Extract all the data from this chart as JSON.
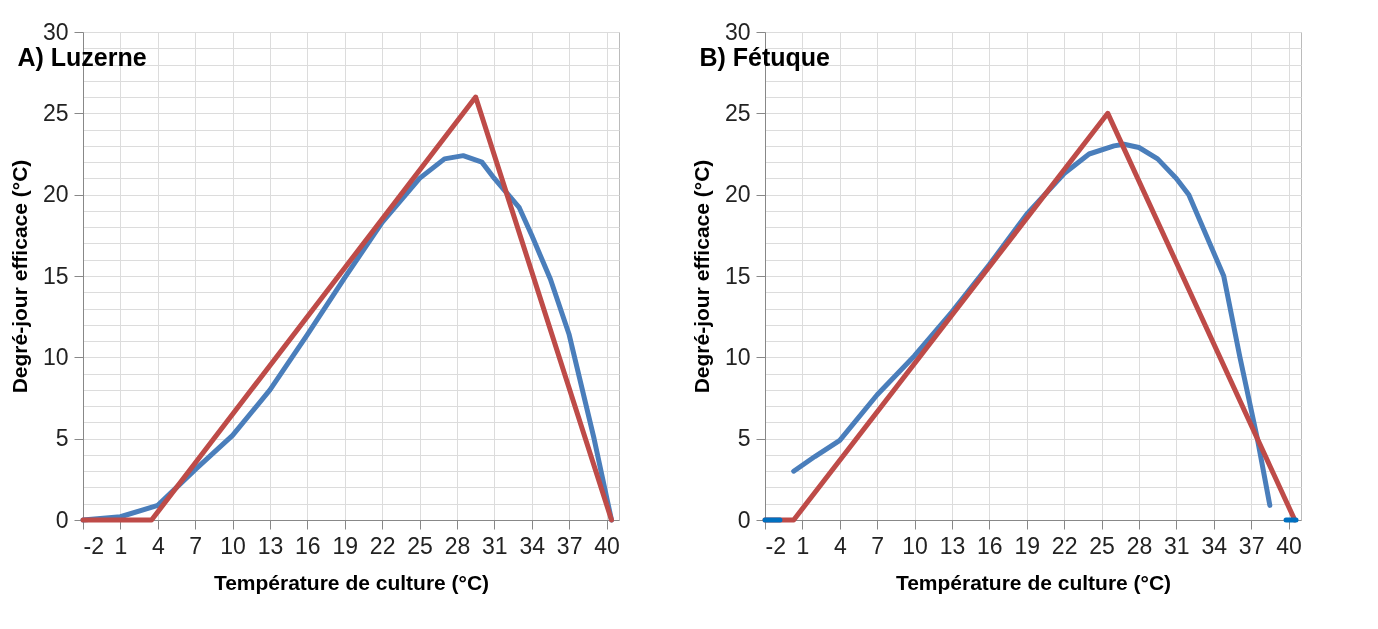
{
  "chart_data": [
    {
      "type": "line",
      "title": "A) Luzerne",
      "xlabel": "Température de culture (°C)",
      "ylabel": "Degré-jour efficace (°C)",
      "xlim": [
        -2,
        41
      ],
      "xticks": [
        -2,
        1,
        4,
        7,
        10,
        13,
        16,
        19,
        22,
        25,
        28,
        31,
        34,
        37,
        40
      ],
      "ylim": [
        0,
        30
      ],
      "yticks": [
        0,
        {
          "value": 1,
          "label": null
        },
        {
          "value": 2,
          "label": null
        },
        {
          "value": 3,
          "label": null
        },
        {
          "value": 4,
          "label": null
        },
        5,
        {
          "value": 6,
          "label": null
        },
        {
          "value": 7,
          "label": null
        },
        {
          "value": 8,
          "label": null
        },
        {
          "value": 9,
          "label": null
        },
        10,
        {
          "value": 11,
          "label": null
        },
        {
          "value": 12,
          "label": null
        },
        {
          "value": 13,
          "label": null
        },
        {
          "value": 14,
          "label": null
        },
        15,
        {
          "value": 16,
          "label": null
        },
        {
          "value": 17,
          "label": null
        },
        {
          "value": 18,
          "label": null
        },
        {
          "value": 19,
          "label": null
        },
        20,
        {
          "value": 21,
          "label": null
        },
        {
          "value": 22,
          "label": null
        },
        {
          "value": 23,
          "label": null
        },
        {
          "value": 24,
          "label": null
        },
        25,
        {
          "value": 26,
          "label": null
        },
        {
          "value": 27,
          "label": null
        },
        {
          "value": 28,
          "label": null
        },
        {
          "value": 29,
          "label": null
        },
        30
      ],
      "grid": true,
      "line_style": "solid",
      "series": [
        {
          "color": "#4a7ebb",
          "x": [
            -2,
            1,
            4,
            7,
            10,
            13,
            16,
            19,
            22,
            25,
            27,
            28.5,
            30,
            31,
            33,
            34,
            35.5,
            37,
            39,
            40.4
          ],
          "values": [
            0,
            0.2,
            0.9,
            3.1,
            5.2,
            8.0,
            11.4,
            14.9,
            18.3,
            21.0,
            22.2,
            22.4,
            22.0,
            21.0,
            19.2,
            17.5,
            14.8,
            11.4,
            5.0,
            0
          ]
        },
        {
          "color": "#be4b48",
          "x": [
            -2,
            3.5,
            29.5,
            40.4
          ],
          "values": [
            0,
            0,
            26,
            0
          ]
        }
      ]
    },
    {
      "type": "line",
      "title": "B) Fétuque",
      "xlabel": "Température de culture (°C)",
      "ylabel": "Degré-jour efficace (°C)",
      "xlim": [
        -2,
        41
      ],
      "xticks": [
        -2,
        1,
        4,
        7,
        10,
        13,
        16,
        19,
        22,
        25,
        28,
        31,
        34,
        37,
        40
      ],
      "ylim": [
        0,
        30
      ],
      "yticks": [
        0,
        {
          "value": 1,
          "label": null
        },
        {
          "value": 2,
          "label": null
        },
        {
          "value": 3,
          "label": null
        },
        {
          "value": 4,
          "label": null
        },
        5,
        {
          "value": 6,
          "label": null
        },
        {
          "value": 7,
          "label": null
        },
        {
          "value": 8,
          "label": null
        },
        {
          "value": 9,
          "label": null
        },
        10,
        {
          "value": 11,
          "label": null
        },
        {
          "value": 12,
          "label": null
        },
        {
          "value": 13,
          "label": null
        },
        {
          "value": 14,
          "label": null
        },
        15,
        {
          "value": 16,
          "label": null
        },
        {
          "value": 17,
          "label": null
        },
        {
          "value": 18,
          "label": null
        },
        {
          "value": 19,
          "label": null
        },
        20,
        {
          "value": 21,
          "label": null
        },
        {
          "value": 22,
          "label": null
        },
        {
          "value": 23,
          "label": null
        },
        {
          "value": 24,
          "label": null
        },
        25,
        {
          "value": 26,
          "label": null
        },
        {
          "value": 27,
          "label": null
        },
        {
          "value": 28,
          "label": null
        },
        {
          "value": 29,
          "label": null
        },
        30
      ],
      "grid": true,
      "line_style": "solid",
      "series": [
        {
          "color": "#4a7ebb",
          "x": [
            0.3,
            2,
            4,
            7,
            10,
            13,
            16,
            19,
            22,
            24,
            26,
            26.8,
            28,
            29.5,
            31,
            32,
            34.8,
            36.1,
            37.5,
            38.5
          ],
          "values": [
            3.0,
            3.9,
            4.9,
            7.7,
            10.1,
            12.8,
            15.7,
            18.8,
            21.3,
            22.5,
            23.0,
            23.1,
            22.9,
            22.2,
            21.0,
            20.0,
            15.0,
            10.0,
            5.0,
            0.9
          ]
        },
        {
          "color": "#be4b48",
          "x": [
            -2,
            0.3,
            25.5,
            40.5
          ],
          "values": [
            0,
            0,
            25,
            0
          ]
        },
        {
          "color": "#0070c0",
          "x": [
            -2,
            -0.8
          ],
          "values": [
            0,
            0
          ]
        },
        {
          "color": "#0070c0",
          "x": [
            39.8,
            40.6
          ],
          "values": [
            0,
            0
          ]
        }
      ]
    }
  ]
}
